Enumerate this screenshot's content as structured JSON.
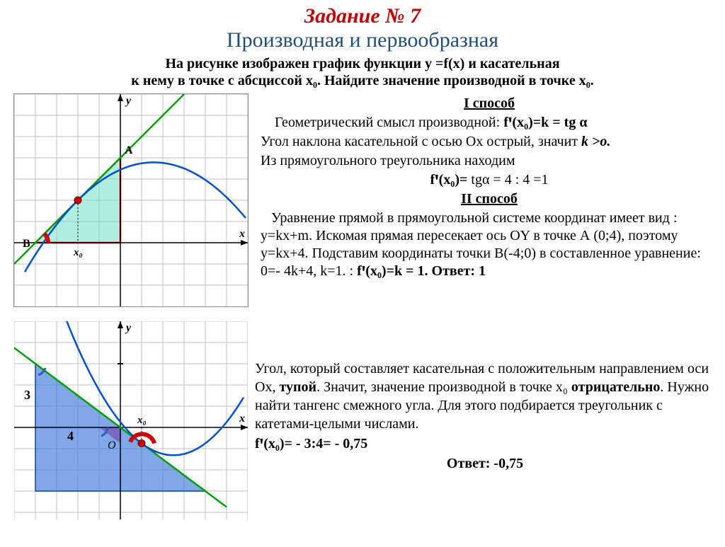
{
  "header": {
    "task_title": "Задание № 7",
    "subtitle": "Производная и первообразная",
    "problem_line1": "На рисунке изображен график функции y =f(x) и касательная",
    "problem_line2": "к нему в точке с абсциссой x₀. Найдите значение производной в точке x₀."
  },
  "method1": {
    "title": "I способ",
    "line1": "Геометрический смысл производной:",
    "formula1": "fꞌ(x₀)=k = tg α",
    "line2_a": "Угол наклона касательной с осью Ох острый, значит ",
    "line2_b": "k >o.",
    "line3": "Из прямоугольного треугольника находим",
    "formula2_a": "fꞌ(x₀)= ",
    "formula2_b": "tgα = 4 : 4 =1"
  },
  "method2": {
    "title": "II способ",
    "line1": "Уравнение прямой в прямоугольной системе координат имеет вид :  y=kx+m. Искомая прямая пересекает ось OY в точке А (0;4), поэтому y=kx+4. Подставим координаты точки В(-4;0) в составленное уравнение: 0=- 4k+4, k=1. : ",
    "formula": "fꞌ(x₀)=k = 1.",
    "answer_label": "   Ответ: 1"
  },
  "bottom": {
    "line1_a": "Угол, который составляет касательная с положительным направлением оси Ох, ",
    "line1_b": "тупой",
    "line1_c": ". Значит, значение производной в точке x₀ ",
    "line1_d": "отрицательно",
    "line1_e": ". Нужно найти тангенс смежного угла. Для этого подбирается треугольник с катетами-целыми числами.",
    "formula": "fꞌ(x₀)= - 3:4= - 0,75",
    "answer": "Ответ: -0,75"
  },
  "chart1": {
    "grid_color": "#c0c0c0",
    "axis_color": "#000000",
    "tangent_color": "#00a000",
    "curve_color": "#0050d0",
    "triangle_stroke": "#ff0000",
    "triangle_fill": "rgba(100,220,200,0.5)",
    "point_fill": "#cc0000",
    "angle_arc": "#cc0000",
    "x_range": [
      -5,
      6
    ],
    "y_range": [
      -2,
      7
    ],
    "cell": 30,
    "point_A": [
      0,
      4
    ],
    "point_B": [
      -4,
      0
    ],
    "tangent_point": [
      -2,
      2
    ],
    "labels": {
      "A": "A",
      "B": "B",
      "x": "x",
      "y": "y",
      "x0": "x₀"
    }
  },
  "chart2": {
    "grid_color": "#c0c0c0",
    "axis_color": "#000000",
    "tangent_color": "#00a000",
    "curve_color": "#0050d0",
    "triangle_fill": "rgba(60,120,220,0.65)",
    "small_tri_fill": "rgba(120,80,180,0.7)",
    "point_fill": "#cc0000",
    "angle_arc": "#cc0000",
    "blue_arc": "#3060c0",
    "x_range": [
      -5,
      6
    ],
    "y_range": [
      -4,
      5
    ],
    "cell": 30,
    "tri_top": [
      -4,
      3
    ],
    "tri_corner": [
      -4,
      0
    ],
    "tri_right": [
      0,
      0
    ],
    "tangent_point": [
      1,
      -0.75
    ],
    "labels": {
      "x": "x",
      "y": "y",
      "x0": "x₀",
      "O": "O",
      "side3": "3",
      "side4": "4"
    }
  },
  "colors": {
    "task_red": "#c00000",
    "subtitle_blue": "#1f4e79"
  }
}
